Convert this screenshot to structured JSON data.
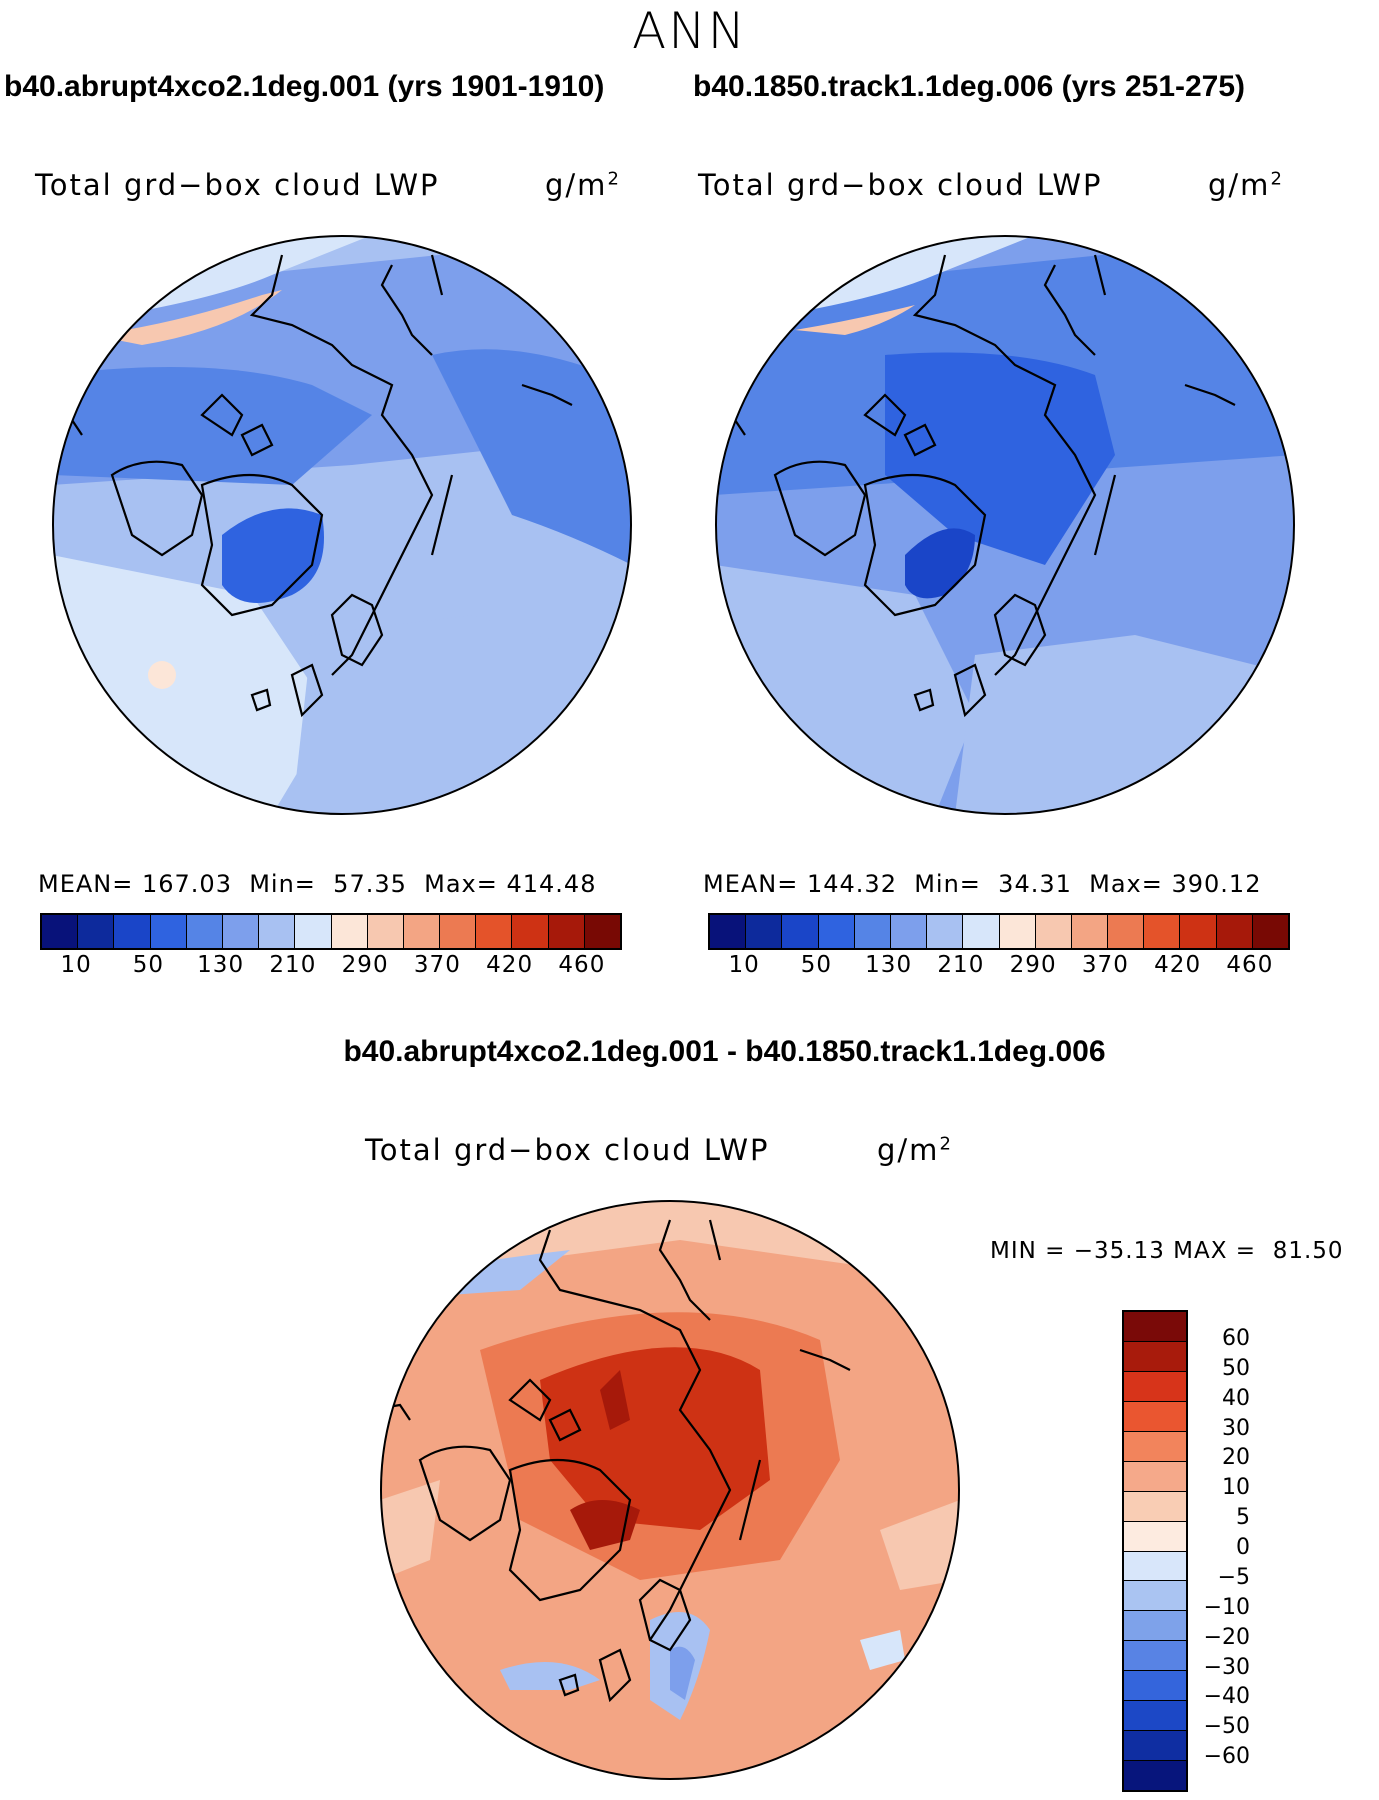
{
  "title": "ANN",
  "panels": [
    {
      "case": "b40.abrupt4xco2.1deg.001 (yrs 1901-1910)",
      "variable": "Total grd−box cloud LWP",
      "units": "g/m",
      "units_exp": "2",
      "stats": "MEAN= 167.03  Min=  57.35  Max= 414.48",
      "colorbar": {
        "colors": [
          "#08127a",
          "#0d2a9c",
          "#1a45c8",
          "#2f63e0",
          "#5584e6",
          "#7d9fec",
          "#a8c1f2",
          "#d7e6fa",
          "#fce6d8",
          "#f7c8b0",
          "#f3a584",
          "#ec7a52",
          "#e4532a",
          "#ce3214",
          "#a6190a",
          "#780904"
        ],
        "ticks": [
          "10",
          "50",
          "130",
          "210",
          "290",
          "370",
          "420",
          "460"
        ]
      }
    },
    {
      "case": "b40.1850.track1.1deg.006 (yrs 251-275)",
      "variable": "Total grd−box cloud LWP",
      "units": "g/m",
      "units_exp": "2",
      "stats": "MEAN= 144.32  Min=  34.31  Max= 390.12",
      "colorbar": {
        "colors": [
          "#08127a",
          "#0d2a9c",
          "#1a45c8",
          "#2f63e0",
          "#5584e6",
          "#7d9fec",
          "#a8c1f2",
          "#d7e6fa",
          "#fce6d8",
          "#f7c8b0",
          "#f3a584",
          "#ec7a52",
          "#e4532a",
          "#ce3214",
          "#a6190a",
          "#780904"
        ],
        "ticks": [
          "10",
          "50",
          "130",
          "210",
          "290",
          "370",
          "420",
          "460"
        ]
      }
    }
  ],
  "diff": {
    "case": "b40.abrupt4xco2.1deg.001 - b40.1850.track1.1deg.006",
    "variable": "Total grd−box cloud LWP",
    "units": "g/m",
    "units_exp": "2",
    "stats": "MIN = −35.13 MAX =  81.50",
    "colorbar": {
      "colors": [
        "#7a0a08",
        "#a81b0c",
        "#d7341a",
        "#ea5630",
        "#f2845c",
        "#f5a98a",
        "#f9cdb4",
        "#fdebe0",
        "#d8e6fa",
        "#aac4f2",
        "#7ea2ea",
        "#5883e4",
        "#3465dc",
        "#1c48c6",
        "#0f2ea2",
        "#07157c"
      ],
      "ticks": [
        "60",
        "50",
        "40",
        "30",
        "20",
        "10",
        "5",
        "0",
        "−5",
        "−10",
        "−20",
        "−30",
        "−40",
        "−50",
        "−60"
      ]
    }
  },
  "map_colors": {
    "deep_blue": "#2f63e0",
    "mid_blue": "#5584e6",
    "light_blue": "#7d9fec",
    "pale_blue": "#a8c1f2",
    "faint_blue": "#d7e6fa",
    "dark_red": "#a6190a",
    "red": "#ce3214",
    "orange": "#ec7a52",
    "salmon": "#f3a584",
    "peach": "#f7c8b0",
    "coast": "#000000"
  }
}
